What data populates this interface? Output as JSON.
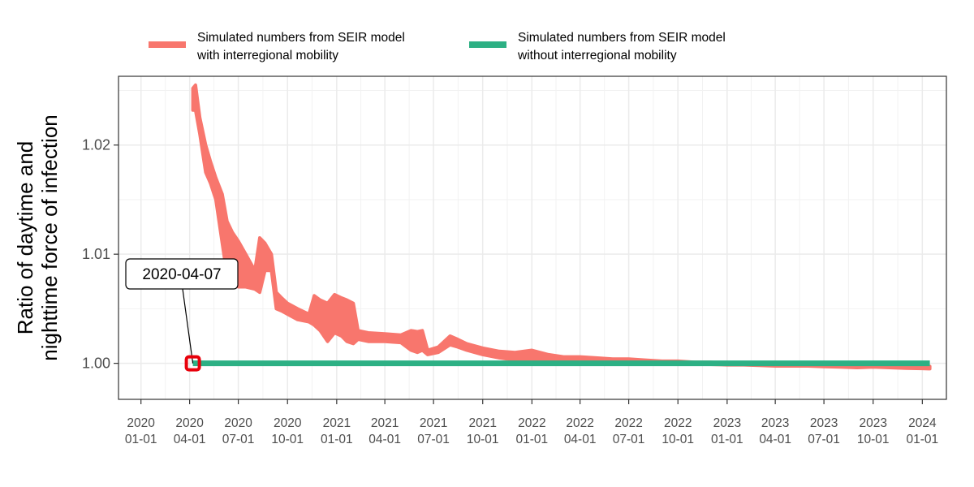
{
  "chart_data": {
    "type": "line",
    "ylabel_lines": [
      "Ratio of daytime and",
      "nighttime force of infection"
    ],
    "xlabel": "",
    "ylim": [
      0.9967,
      1.0263
    ],
    "xlim": [
      "2019-11-20",
      "2024-02-15"
    ],
    "y_ticks": [
      1.0,
      1.01,
      1.02
    ],
    "y_tick_labels": [
      "1.00",
      "1.01",
      "1.02"
    ],
    "x_ticks": [
      "2020-01-01",
      "2020-04-01",
      "2020-07-01",
      "2020-10-01",
      "2021-01-01",
      "2021-04-01",
      "2021-07-01",
      "2021-10-01",
      "2022-01-01",
      "2022-04-01",
      "2022-07-01",
      "2022-10-01",
      "2023-01-01",
      "2023-04-01",
      "2023-07-01",
      "2023-10-01",
      "2024-01-01"
    ],
    "x_tick_labels": [
      [
        "2020",
        "01-01"
      ],
      [
        "2020",
        "04-01"
      ],
      [
        "2020",
        "07-01"
      ],
      [
        "2020",
        "10-01"
      ],
      [
        "2021",
        "01-01"
      ],
      [
        "2021",
        "04-01"
      ],
      [
        "2021",
        "07-01"
      ],
      [
        "2021",
        "10-01"
      ],
      [
        "2022",
        "01-01"
      ],
      [
        "2022",
        "04-01"
      ],
      [
        "2022",
        "07-01"
      ],
      [
        "2022",
        "10-01"
      ],
      [
        "2023",
        "01-01"
      ],
      [
        "2023",
        "04-01"
      ],
      [
        "2023",
        "07-01"
      ],
      [
        "2023",
        "10-01"
      ],
      [
        "2024",
        "01-01"
      ]
    ],
    "grid": true,
    "legend_position": "top",
    "series": [
      {
        "name": "Simulated numbers from SEIR model\nwith interregional mobility",
        "name_lines": [
          "Simulated numbers from SEIR model",
          "with interregional mobility"
        ],
        "color": "#F8766D",
        "x": [
          "2020-04-07",
          "2020-04-12",
          "2020-04-20",
          "2020-05-01",
          "2020-05-10",
          "2020-05-20",
          "2020-06-01",
          "2020-06-10",
          "2020-06-20",
          "2020-07-01",
          "2020-07-15",
          "2020-08-01",
          "2020-08-10",
          "2020-08-20",
          "2020-09-01",
          "2020-09-10",
          "2020-09-20",
          "2020-10-01",
          "2020-10-20",
          "2020-11-10",
          "2020-11-20",
          "2020-12-01",
          "2020-12-15",
          "2020-12-28",
          "2021-01-10",
          "2021-01-20",
          "2021-02-01",
          "2021-02-10",
          "2021-03-01",
          "2021-04-01",
          "2021-05-01",
          "2021-05-20",
          "2021-06-01",
          "2021-06-10",
          "2021-06-20",
          "2021-07-10",
          "2021-08-01",
          "2021-08-15",
          "2021-09-01",
          "2021-10-01",
          "2021-11-01",
          "2021-12-01",
          "2022-01-01",
          "2022-02-01",
          "2022-03-01",
          "2022-04-01",
          "2022-05-01",
          "2022-06-01",
          "2022-07-01",
          "2022-08-01",
          "2022-09-01",
          "2022-10-01",
          "2022-11-01",
          "2022-12-01",
          "2023-01-01",
          "2023-02-01",
          "2023-03-01",
          "2023-04-01",
          "2023-05-01",
          "2023-06-01",
          "2023-07-01",
          "2023-08-01",
          "2023-09-01",
          "2023-10-01",
          "2023-11-01",
          "2023-12-01",
          "2024-01-01",
          "2024-01-15"
        ],
        "y_high": [
          1.0252,
          1.0255,
          1.0225,
          1.02,
          1.0185,
          1.017,
          1.0155,
          1.013,
          1.012,
          1.0112,
          1.01,
          1.0085,
          1.0115,
          1.011,
          1.01,
          1.0065,
          1.006,
          1.0055,
          1.005,
          1.0045,
          1.0062,
          1.0058,
          1.0055,
          1.0063,
          1.006,
          1.0058,
          1.0055,
          1.003,
          1.0028,
          1.0027,
          1.0026,
          1.003,
          1.0029,
          1.003,
          1.0012,
          1.0015,
          1.0025,
          1.0022,
          1.0018,
          1.0014,
          1.0011,
          1.001,
          1.0012,
          1.0008,
          1.0006,
          1.0006,
          1.0005,
          1.0004,
          1.0004,
          1.0003,
          1.0002,
          1.0002,
          1.0001,
          1.0001,
          1.0,
          0.99995,
          1.0,
          0.99993,
          0.99992,
          0.9999,
          0.9999,
          0.99988,
          0.99985,
          0.99985,
          0.99985,
          0.9998,
          0.99975,
          0.99972
        ],
        "y_low": [
          1.0232,
          1.0232,
          1.021,
          1.0175,
          1.0165,
          1.015,
          1.011,
          1.008,
          1.0075,
          1.007,
          1.007,
          1.0068,
          1.0065,
          1.0085,
          1.0085,
          1.005,
          1.0048,
          1.0045,
          1.004,
          1.0038,
          1.0035,
          1.003,
          1.002,
          1.0028,
          1.0025,
          1.002,
          1.0018,
          1.0022,
          1.002,
          1.002,
          1.0019,
          1.0012,
          1.001,
          1.0012,
          1.0008,
          1.001,
          1.0017,
          1.0015,
          1.0012,
          1.0008,
          1.0005,
          1.0003,
          1.0003,
          1.0001,
          1.0001,
          1.0002,
          1.0001,
          1.0001,
          1.0001,
          1.0,
          1.0,
          0.99995,
          0.99995,
          0.9999,
          0.99985,
          0.99985,
          0.9998,
          0.99975,
          0.99975,
          0.99975,
          0.9997,
          0.99965,
          0.9996,
          0.99965,
          0.9996,
          0.99955,
          0.99952,
          0.9995
        ]
      },
      {
        "name": "Simulated numbers from SEIR model\nwithout interregional mobility",
        "name_lines": [
          "Simulated numbers from SEIR model",
          "without interregional mobility"
        ],
        "color": "#2DB084",
        "x": [
          "2020-04-07",
          "2024-01-15"
        ],
        "y": [
          1.0,
          1.0
        ]
      }
    ],
    "annotations": [
      {
        "label": "2020-04-07",
        "x": "2020-04-07",
        "y": 1.0,
        "marker_color": "#E8000B"
      }
    ]
  }
}
